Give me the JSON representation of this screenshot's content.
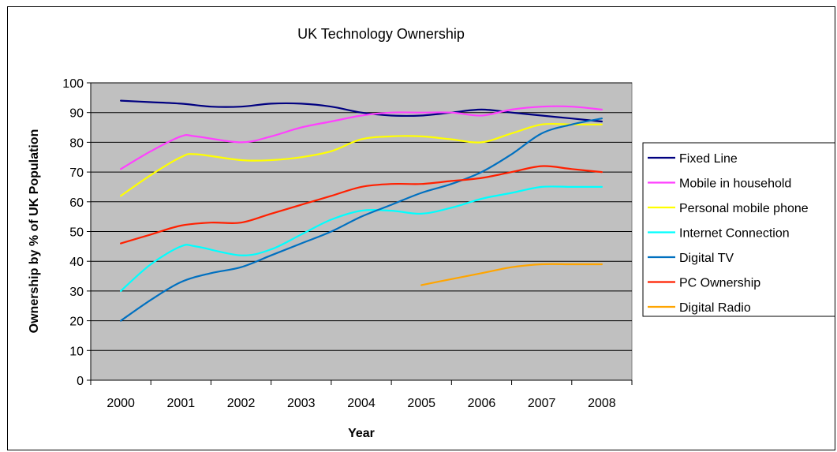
{
  "chart_data": {
    "type": "line",
    "title": "UK Technology Ownership",
    "xlabel": "Year",
    "ylabel": "Ownership by % of UK Population",
    "x": [
      "2000",
      "2001",
      "2002",
      "2003",
      "2004",
      "2005",
      "2006",
      "2007",
      "2008"
    ],
    "ylim": [
      0,
      100
    ],
    "yticks": [
      0,
      10,
      20,
      30,
      40,
      50,
      60,
      70,
      80,
      90,
      100
    ],
    "grid": true,
    "plot_background": "#c0c0c0",
    "legend_position": "right",
    "series": [
      {
        "name": "Fixed Line",
        "color": "#000080",
        "points": [
          [
            0,
            94
          ],
          [
            0.5,
            93.5
          ],
          [
            1,
            93
          ],
          [
            1.5,
            92
          ],
          [
            2,
            92
          ],
          [
            2.5,
            93
          ],
          [
            3,
            93
          ],
          [
            3.5,
            92
          ],
          [
            4,
            90
          ],
          [
            4.5,
            89
          ],
          [
            5,
            89
          ],
          [
            5.5,
            90
          ],
          [
            6,
            91
          ],
          [
            6.5,
            90
          ],
          [
            7,
            89
          ],
          [
            7.5,
            88
          ],
          [
            8,
            87
          ]
        ]
      },
      {
        "name": "Mobile in household",
        "color": "#ff40ff",
        "points": [
          [
            0,
            71
          ],
          [
            0.5,
            77
          ],
          [
            1,
            82
          ],
          [
            1.25,
            82
          ],
          [
            2,
            80
          ],
          [
            2.5,
            82
          ],
          [
            3,
            85
          ],
          [
            3.5,
            87
          ],
          [
            4,
            89
          ],
          [
            4.5,
            90
          ],
          [
            5,
            90
          ],
          [
            5.5,
            90
          ],
          [
            6,
            89
          ],
          [
            6.5,
            91
          ],
          [
            7,
            92
          ],
          [
            7.5,
            92
          ],
          [
            8,
            91
          ]
        ]
      },
      {
        "name": "Personal mobile phone",
        "color": "#ffff00",
        "points": [
          [
            0,
            62
          ],
          [
            0.5,
            69
          ],
          [
            1,
            75
          ],
          [
            1.25,
            76
          ],
          [
            2,
            74
          ],
          [
            2.5,
            74
          ],
          [
            3,
            75
          ],
          [
            3.5,
            77
          ],
          [
            4,
            81
          ],
          [
            4.5,
            82
          ],
          [
            5,
            82
          ],
          [
            5.5,
            81
          ],
          [
            6,
            80
          ],
          [
            6.5,
            83
          ],
          [
            7,
            86
          ],
          [
            7.5,
            86
          ],
          [
            8,
            86
          ]
        ]
      },
      {
        "name": "Internet Connection",
        "color": "#00ffff",
        "points": [
          [
            0,
            30
          ],
          [
            0.5,
            39
          ],
          [
            1,
            45
          ],
          [
            1.25,
            45
          ],
          [
            2,
            42
          ],
          [
            2.5,
            44
          ],
          [
            3,
            49
          ],
          [
            3.5,
            54
          ],
          [
            4,
            57
          ],
          [
            4.5,
            57
          ],
          [
            5,
            56
          ],
          [
            5.5,
            58
          ],
          [
            6,
            61
          ],
          [
            6.5,
            63
          ],
          [
            7,
            65
          ],
          [
            7.5,
            65
          ],
          [
            8,
            65
          ]
        ]
      },
      {
        "name": "Digital TV",
        "color": "#0070c0",
        "points": [
          [
            0,
            20
          ],
          [
            0.5,
            27
          ],
          [
            1,
            33
          ],
          [
            1.5,
            36
          ],
          [
            2,
            38
          ],
          [
            2.5,
            42
          ],
          [
            3,
            46
          ],
          [
            3.5,
            50
          ],
          [
            4,
            55
          ],
          [
            4.5,
            59
          ],
          [
            5,
            63
          ],
          [
            5.5,
            66
          ],
          [
            6,
            70
          ],
          [
            6.5,
            76
          ],
          [
            7,
            83
          ],
          [
            7.5,
            86
          ],
          [
            8,
            88
          ]
        ]
      },
      {
        "name": "PC Ownership",
        "color": "#ff2000",
        "points": [
          [
            0,
            46
          ],
          [
            0.5,
            49
          ],
          [
            1,
            52
          ],
          [
            1.5,
            53
          ],
          [
            2,
            53
          ],
          [
            2.5,
            56
          ],
          [
            3,
            59
          ],
          [
            3.5,
            62
          ],
          [
            4,
            65
          ],
          [
            4.5,
            66
          ],
          [
            5,
            66
          ],
          [
            5.5,
            67
          ],
          [
            6,
            68
          ],
          [
            6.5,
            70
          ],
          [
            7,
            72
          ],
          [
            7.5,
            71
          ],
          [
            8,
            70
          ]
        ]
      },
      {
        "name": "Digital Radio",
        "color": "#ffa500",
        "points": [
          [
            5,
            32
          ],
          [
            5.5,
            34
          ],
          [
            6,
            36
          ],
          [
            6.5,
            38
          ],
          [
            7,
            39
          ],
          [
            7.5,
            39
          ],
          [
            8,
            39
          ]
        ]
      }
    ]
  }
}
